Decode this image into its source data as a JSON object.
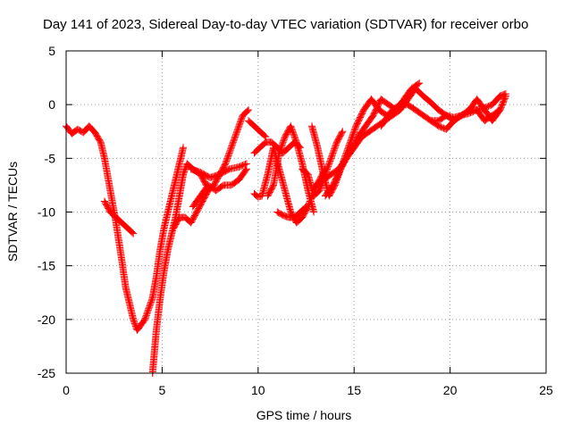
{
  "chart_data": {
    "type": "scatter",
    "title": "Day 141 of 2023, Sidereal Day-to-day VTEC variation (SDTVAR) for receiver orbo",
    "xlabel": "GPS time / hours",
    "ylabel": "SDTVAR / TECUs",
    "xlim": [
      0,
      25
    ],
    "ylim": [
      -25,
      5
    ],
    "xticks": [
      0,
      5,
      10,
      15,
      20,
      25
    ],
    "yticks": [
      5,
      0,
      -5,
      -10,
      -15,
      -20,
      -25
    ],
    "xtick_labels": [
      "0",
      "5",
      "10",
      "15",
      "20",
      "25"
    ],
    "ytick_labels": [
      "5",
      "0",
      "-5",
      "-10",
      "-15",
      "-20",
      "-25"
    ],
    "grid": true,
    "marker": "plus",
    "color": "#ff0000",
    "series": [
      {
        "x": [
          0.0,
          0.3,
          0.6,
          0.9,
          1.2,
          1.5,
          1.8,
          2.0,
          2.3,
          2.6,
          2.9,
          3.1,
          3.3,
          3.5,
          3.7,
          3.9,
          4.1,
          4.3,
          4.5,
          4.7,
          4.9,
          5.1,
          5.3,
          5.5,
          5.7,
          5.9,
          6.1
        ],
        "y": [
          -2.0,
          -2.7,
          -2.3,
          -2.6,
          -2.0,
          -2.6,
          -3.5,
          -5.0,
          -8.0,
          -11.0,
          -14.5,
          -17.0,
          -18.5,
          -20.0,
          -21.0,
          -20.5,
          -20.0,
          -19.0,
          -18.0,
          -16.0,
          -13.5,
          -11.5,
          -10.0,
          -8.5,
          -7.0,
          -5.5,
          -4.0
        ]
      },
      {
        "x": [
          2.0,
          2.3,
          2.6,
          2.9,
          3.2,
          3.5
        ],
        "y": [
          -9.0,
          -10.0,
          -10.5,
          -11.0,
          -11.5,
          -12.0
        ]
      },
      {
        "x": [
          4.5,
          4.7,
          4.9,
          5.1,
          5.3,
          5.5,
          5.7,
          5.9,
          6.1,
          6.3,
          6.6,
          7.0,
          7.3
        ],
        "y": [
          -25.0,
          -21.0,
          -18.0,
          -15.5,
          -13.5,
          -12.0,
          -10.5,
          -8.5,
          -6.5,
          -5.5,
          -6.0,
          -6.5,
          -7.5
        ]
      },
      {
        "x": [
          5.6,
          5.9,
          6.2,
          6.5,
          6.8,
          7.1,
          7.4,
          7.7,
          8.0,
          8.3,
          8.6,
          8.9,
          9.2,
          9.5
        ],
        "y": [
          -11.5,
          -10.5,
          -10.5,
          -11.0,
          -10.0,
          -9.0,
          -8.0,
          -7.5,
          -6.5,
          -5.5,
          -4.0,
          -2.5,
          -1.0,
          -0.5
        ]
      },
      {
        "x": [
          6.6,
          7.0,
          7.4,
          7.8,
          8.2,
          8.6,
          9.0,
          9.4
        ],
        "y": [
          -9.5,
          -8.5,
          -7.5,
          -8.0,
          -7.5,
          -7.5,
          -7.0,
          -6.0
        ]
      },
      {
        "x": [
          6.5,
          7.0,
          7.5,
          8.0,
          8.5,
          9.0,
          9.4
        ],
        "y": [
          -6.0,
          -6.3,
          -6.8,
          -6.5,
          -6.0,
          -5.8,
          -5.5
        ]
      },
      {
        "x": [
          9.8,
          10.0,
          10.2,
          10.5,
          10.8,
          11.1,
          11.4,
          11.7,
          12.0,
          12.3,
          12.6,
          12.9,
          13.2,
          13.5
        ],
        "y": [
          -8.3,
          -8.6,
          -8.5,
          -6.5,
          -4.0,
          -6.0,
          -8.0,
          -10.0,
          -11.0,
          -10.5,
          -9.5,
          -8.0,
          -7.0,
          -6.0
        ]
      },
      {
        "x": [
          10.5,
          10.8,
          11.1,
          11.4,
          11.7,
          12.0,
          12.3,
          12.6,
          12.9
        ],
        "y": [
          -8.5,
          -7.5,
          -4.5,
          -3.0,
          -2.0,
          -3.5,
          -5.5,
          -8.0,
          -10.0
        ]
      },
      {
        "x": [
          9.8,
          10.1,
          10.4,
          10.7,
          11.0,
          11.3,
          11.6,
          11.9,
          12.2
        ],
        "y": [
          -4.5,
          -4.0,
          -3.5,
          -3.5,
          -4.0,
          -4.5,
          -4.0,
          -3.5,
          -4.0
        ]
      },
      {
        "x": [
          9.5,
          9.8,
          10.1,
          10.4
        ],
        "y": [
          -1.5,
          -2.0,
          -2.5,
          -3.0
        ]
      },
      {
        "x": [
          11.0,
          11.3,
          11.6,
          11.9,
          12.2,
          12.5
        ],
        "y": [
          -10.0,
          -10.3,
          -10.5,
          -10.5,
          -10.0,
          -9.5
        ]
      },
      {
        "x": [
          12.3,
          12.6,
          12.9,
          13.2,
          13.5,
          13.8,
          14.1,
          14.4
        ],
        "y": [
          -6.0,
          -6.5,
          -8.5,
          -8.0,
          -6.5,
          -5.0,
          -3.5,
          -2.5
        ]
      },
      {
        "x": [
          12.8,
          13.1,
          13.4,
          13.7,
          14.0,
          14.3,
          14.6
        ],
        "y": [
          -2.0,
          -4.0,
          -6.5,
          -8.5,
          -7.5,
          -6.0,
          -5.0
        ]
      },
      {
        "x": [
          13.0,
          13.4,
          13.8,
          14.2,
          14.6,
          15.0,
          15.4,
          15.8,
          16.2,
          16.6,
          17.0,
          17.4,
          17.8,
          18.2
        ],
        "y": [
          -7.5,
          -7.0,
          -6.5,
          -6.0,
          -5.0,
          -4.0,
          -3.0,
          -2.5,
          -2.0,
          -1.5,
          -1.0,
          -0.5,
          0.5,
          1.5
        ]
      },
      {
        "x": [
          13.5,
          13.9,
          14.3,
          14.7,
          15.1,
          15.5,
          15.9,
          16.3,
          16.7,
          17.1
        ],
        "y": [
          -8.5,
          -7.5,
          -6.0,
          -4.0,
          -2.0,
          -0.5,
          0.5,
          -0.5,
          -1.0,
          -0.5
        ]
      },
      {
        "x": [
          14.8,
          15.2,
          15.6,
          16.0,
          16.4,
          16.8,
          17.2
        ],
        "y": [
          -4.5,
          -3.0,
          -2.0,
          -1.0,
          0.5,
          0.0,
          -0.5
        ]
      },
      {
        "x": [
          16.4,
          16.8,
          17.2,
          17.6,
          18.0,
          18.4
        ],
        "y": [
          -2.0,
          -1.0,
          -0.5,
          0.5,
          1.5,
          2.0
        ]
      },
      {
        "x": [
          18.2,
          18.6,
          19.0,
          19.4,
          19.8,
          20.2,
          20.6,
          21.0,
          21.4,
          21.8,
          22.2,
          22.6,
          22.9
        ],
        "y": [
          1.5,
          0.8,
          0.2,
          -0.5,
          -1.0,
          -1.2,
          -1.0,
          -0.8,
          -0.5,
          -0.3,
          0.0,
          0.8,
          1.0
        ]
      },
      {
        "x": [
          17.0,
          17.4,
          17.8,
          18.2,
          18.6,
          19.0,
          19.4,
          19.8,
          20.2,
          20.6,
          21.0,
          21.4,
          21.8,
          22.2,
          22.6
        ],
        "y": [
          -0.5,
          0.0,
          0.0,
          -0.5,
          -1.0,
          -1.5,
          -1.5,
          -1.0,
          -1.5,
          -1.0,
          -0.5,
          -0.5,
          -1.5,
          -1.0,
          -0.5
        ]
      },
      {
        "x": [
          19.0,
          19.4,
          19.8,
          20.2,
          20.6,
          21.0,
          21.4,
          21.8,
          22.2,
          22.6,
          22.9
        ],
        "y": [
          -1.5,
          -2.0,
          -2.3,
          -1.5,
          -1.0,
          -0.5,
          0.5,
          -0.5,
          -1.5,
          -0.5,
          0.8
        ]
      }
    ]
  }
}
